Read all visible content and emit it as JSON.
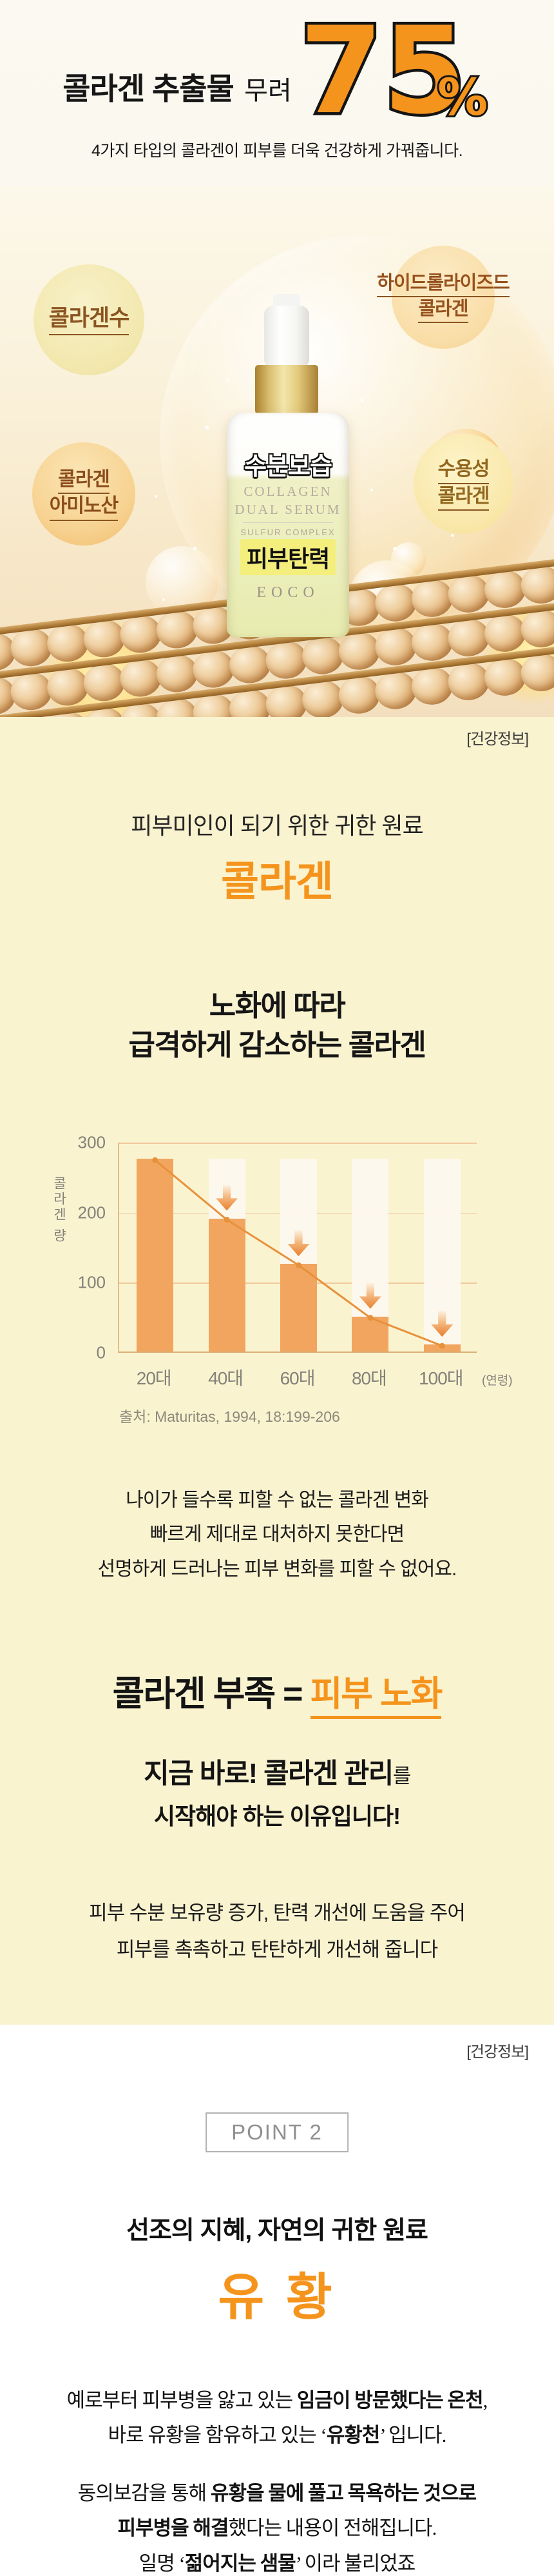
{
  "colors": {
    "accent_orange": "#f5941d",
    "cream_bg": "#faf3d0",
    "bubble_text_brown": "#8a5420"
  },
  "header": {
    "title_bold": "콜라겐 추출물",
    "title_rest": "무려",
    "percent_number": "75",
    "percent_sign": "%",
    "subtitle": "4가지 타입의 콜라겐이 피부를 더욱 건강하게 가꿔줍니다."
  },
  "hero": {
    "bubble_top_left": "콜라겐수",
    "bubble_top_right_line1": "하이드롤라이즈드",
    "bubble_top_right_line2": "콜라겐",
    "bubble_bottom_left_line1": "콜라겐",
    "bubble_bottom_left_line2": "아미노산",
    "bubble_bottom_right_line1": "수용성",
    "bubble_bottom_right_line2": "콜라겐",
    "bottle": {
      "overlay_top": "수분보습",
      "label_line1": "COLLAGEN",
      "label_line2": "DUAL SERUM",
      "label_line3": "SULFUR COMPLEX",
      "overlay_bottom": "피부탄력",
      "brand": "EOCO"
    }
  },
  "info_tag": "[건강정보]",
  "collagen_section": {
    "intro": "피부미인이 되기 위한 귀한 원료",
    "title": "콜라겐",
    "chart_heading_line1": "노화에 따라",
    "chart_heading_line2": "급격하게 감소하는 콜라겐",
    "para1_line1": "나이가 들수록 피할 수 없는 콜라겐 변화",
    "para1_line2": "빠르게 제대로 대처하지 못한다면",
    "para1_line3": "선명하게 드러나는 피부 변화를 피할 수 없어요.",
    "equation_black": "콜라겐 부족 = ",
    "equation_orange": "피부 노화",
    "cta_bold": "지금 바로!  콜라겐 관리",
    "cta_small": "를",
    "cta_line2": "시작해야 하는 이유입니다!",
    "benefit_line1": "피부 수분 보유량 증가, 탄력 개선에 도움을 주어",
    "benefit_line2": "피부를 촉촉하고 탄탄하게 개선해 줍니다"
  },
  "chart_data": {
    "type": "bar",
    "title": "노화에 따라 급격하게 감소하는 콜라겐",
    "categories": [
      "20대",
      "40대",
      "60대",
      "80대",
      "100대"
    ],
    "values": [
      275,
      190,
      125,
      50,
      10
    ],
    "max_reference": 275,
    "ylabel": "콜라겐 량",
    "x_unit_suffix": "(연령)",
    "yticks": [
      300,
      200,
      100,
      0
    ],
    "ylim": [
      0,
      300
    ],
    "grid": true,
    "legend": false,
    "source": "출처: Maturitas, 1994, 18:199-206",
    "bar_color": "#f1a55e",
    "ghost_bar_color": "#fdf8ee",
    "line_color": "#e8913c",
    "annotations": "orange down-arrows above decreasing bars, trend line with dot markers"
  },
  "sulfur_section": {
    "badge": "POINT 2",
    "intro": "선조의 지혜, 자연의 귀한 원료",
    "title": "유 황",
    "para1_pre": "예로부터 피부병을 앓고 있는 ",
    "para1_bold": "임금이 방문했다는 온천",
    "para1_post": ",",
    "para2_pre": "바로 유황을 함유하고 있는 ‘",
    "para2_bold": "유황천",
    "para2_post": "’ 입니다.",
    "para3_pre": "동의보감을 통해 ",
    "para3_bold": "유황을 물에 풀고 목욕하는 것으로",
    "para4_bold": "피부병을 해결",
    "para4_post": "했다는 내용이 전해집니다.",
    "para5_pre": "일명 ‘",
    "para5_bold": "젊어지는 샘물",
    "para5_post": "’ 이라 불리었죠"
  }
}
